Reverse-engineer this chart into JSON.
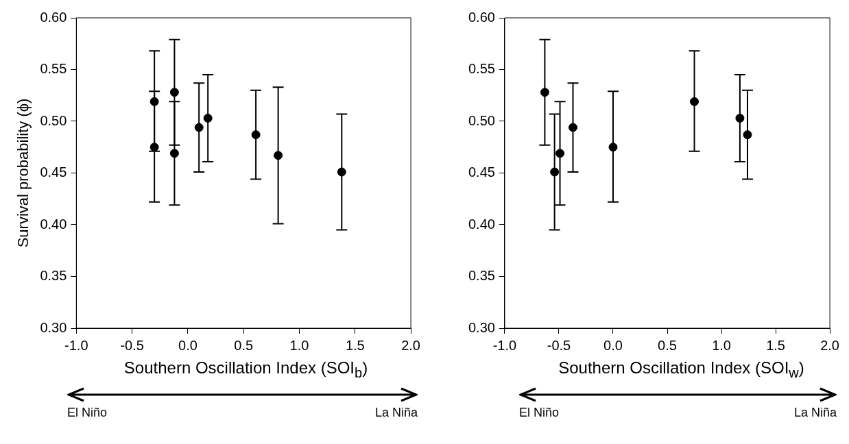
{
  "chart_data": [
    {
      "type": "scatter",
      "ylabel": "Survival probability (ϕ)",
      "xlabel": "Southern Oscillation Index (SOI$_{b}$)",
      "annotations": [
        "El Niño",
        "La Niña"
      ],
      "x": [
        -0.3,
        -0.3,
        -0.12,
        -0.12,
        0.1,
        0.18,
        0.61,
        0.81,
        1.38
      ],
      "series": [
        {
          "color": "#000000",
          "values": [
            0.519,
            0.475,
            0.528,
            0.469,
            0.494,
            0.503,
            0.487,
            0.467,
            0.451
          ],
          "errors": [
            [
              0.471,
              0.568
            ],
            [
              0.422,
              0.529
            ],
            [
              0.477,
              0.579
            ],
            [
              0.419,
              0.519
            ],
            [
              0.451,
              0.537
            ],
            [
              0.461,
              0.545
            ],
            [
              0.444,
              0.53
            ],
            [
              0.401,
              0.533
            ],
            [
              0.395,
              0.507
            ]
          ]
        }
      ],
      "xlim": [
        -1,
        2
      ],
      "xticks": [
        {
          "value": -1,
          "label": "-1.0"
        },
        {
          "value": -0.5,
          "label": "-0.5"
        },
        {
          "value": 0,
          "label": "0.0"
        },
        {
          "value": 0.5,
          "label": "0.5"
        },
        {
          "value": 1,
          "label": "1.0"
        },
        {
          "value": 1.5,
          "label": "1.5"
        },
        {
          "value": 2,
          "label": "2.0"
        }
      ],
      "ylim": [
        0.3,
        0.6
      ],
      "yticks": [
        {
          "value": 0.3,
          "label": "0.30"
        },
        {
          "value": 0.35,
          "label": "0.35"
        },
        {
          "value": 0.4,
          "label": "0.40"
        },
        {
          "value": 0.45,
          "label": "0.45"
        },
        {
          "value": 0.5,
          "label": "0.50"
        },
        {
          "value": 0.55,
          "label": "0.55"
        },
        {
          "value": 0.6,
          "label": "0.60"
        }
      ],
      "grid": false,
      "legend": false,
      "marker": "circle"
    },
    {
      "type": "scatter",
      "xlabel": "Southern Oscillation Index (SOI$_{w}$)",
      "annotations": [
        "El Niño",
        "La Niña"
      ],
      "x": [
        -0.63,
        -0.54,
        -0.49,
        -0.37,
        0.0,
        0.75,
        1.17,
        1.24
      ],
      "series": [
        {
          "color": "#000000",
          "values": [
            0.528,
            0.451,
            0.469,
            0.494,
            0.475,
            0.519,
            0.503,
            0.487
          ],
          "errors": [
            [
              0.477,
              0.579
            ],
            [
              0.395,
              0.507
            ],
            [
              0.419,
              0.519
            ],
            [
              0.451,
              0.537
            ],
            [
              0.422,
              0.529
            ],
            [
              0.471,
              0.568
            ],
            [
              0.461,
              0.545
            ],
            [
              0.444,
              0.53
            ]
          ]
        }
      ],
      "xlim": [
        -1,
        2
      ],
      "xticks": [
        {
          "value": -1,
          "label": "-1.0"
        },
        {
          "value": -0.5,
          "label": "-0.5"
        },
        {
          "value": 0,
          "label": "0.0"
        },
        {
          "value": 0.5,
          "label": "0.5"
        },
        {
          "value": 1,
          "label": "1.0"
        },
        {
          "value": 1.5,
          "label": "1.5"
        },
        {
          "value": 2,
          "label": "2.0"
        }
      ],
      "ylim": [
        0.3,
        0.6
      ],
      "yticks": [
        {
          "value": 0.3,
          "label": "0.30"
        },
        {
          "value": 0.35,
          "label": "0.35"
        },
        {
          "value": 0.4,
          "label": "0.40"
        },
        {
          "value": 0.45,
          "label": "0.45"
        },
        {
          "value": 0.5,
          "label": "0.50"
        },
        {
          "value": 0.55,
          "label": "0.55"
        },
        {
          "value": 0.6,
          "label": "0.60"
        }
      ],
      "grid": false,
      "legend": false,
      "marker": "circle"
    }
  ]
}
